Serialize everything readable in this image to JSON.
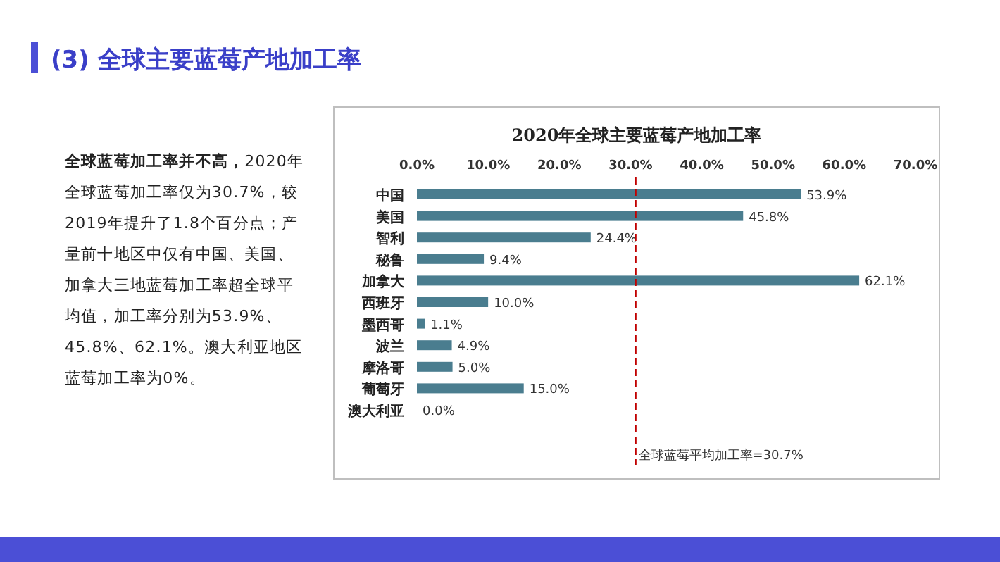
{
  "chart_data": {
    "type": "bar",
    "orientation": "horizontal",
    "title": "(3) 全球主要蓝莓产地加工率",
    "subtitle": "2020年全球主要蓝莓产地加工率",
    "categories": [
      "中国",
      "美国",
      "智利",
      "秘鲁",
      "加拿大",
      "西班牙",
      "墨西哥",
      "波兰",
      "摩洛哥",
      "葡萄牙",
      "澳大利亚"
    ],
    "values": [
      53.9,
      45.8,
      24.4,
      9.4,
      62.1,
      10.0,
      1.1,
      4.9,
      5.0,
      15.0,
      0.0
    ],
    "value_labels": [
      "53.9%",
      "45.8%",
      "24.4%",
      "9.4%",
      "62.1%",
      "10.0%",
      "1.1%",
      "4.9%",
      "5.0%",
      "15.0%",
      "0.0%"
    ],
    "color": "#4a7d8f",
    "xlim": [
      0,
      70
    ],
    "xticks": [
      {
        "value": 0,
        "label": "0.0%"
      },
      {
        "value": 10,
        "label": "10.0%"
      },
      {
        "value": 20,
        "label": "20.0%"
      },
      {
        "value": 30,
        "label": "30.0%"
      },
      {
        "value": 40,
        "label": "40.0%"
      },
      {
        "value": 50,
        "label": "50.0%"
      },
      {
        "value": 60,
        "label": "60.0%"
      },
      {
        "value": 70,
        "label": "70.0%"
      }
    ],
    "ref_lines": [
      {
        "axis": "x",
        "value": 30.7,
        "label": "全球蓝莓平均加工率=30.7%",
        "color": "#c00000",
        "line_style": "dashed"
      }
    ],
    "annotations": [
      "**全球蓝莓加工率并不高，**2020年全球蓝莓加工率仅为30.7%，较2019年提升了1.8个百分点；产量前十地区中仅有中国、美国、加拿大三地蓝莓加工率超全球平均值，加工率分别为53.9%、45.8%、62.1%。澳大利亚地区蓝莓加工率为0%。"
    ]
  }
}
